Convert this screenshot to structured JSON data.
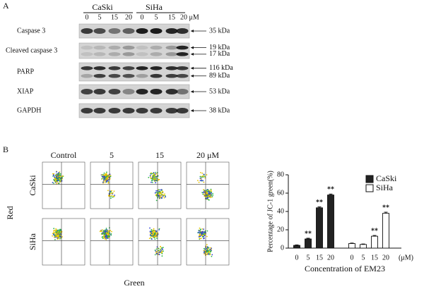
{
  "panel_labels": [
    "A",
    "B"
  ],
  "western_blot": {
    "cell_lines": [
      "CaSki",
      "SiHa"
    ],
    "concentrations": [
      "0",
      "5",
      "15",
      "20",
      "0",
      "5",
      "15",
      "20 μM"
    ],
    "rows": [
      {
        "label": "Caspase 3",
        "markers": [
          "35 kDa"
        ]
      },
      {
        "label": "Cleaved caspase 3",
        "markers": [
          "19 kDa",
          "17 kDa"
        ]
      },
      {
        "label": "PARP",
        "markers": [
          "116 kDa",
          "89 kDa"
        ]
      },
      {
        "label": "XIAP",
        "markers": [
          "53 kDa"
        ]
      },
      {
        "label": "GAPDH",
        "markers": [
          "38 kDa"
        ]
      }
    ]
  },
  "flow_cytometry": {
    "columns": [
      "Control",
      "5",
      "15",
      "20 μM"
    ],
    "rows": [
      "CaSki",
      "SiHa"
    ],
    "y_label": "Red",
    "x_label": "Green"
  },
  "chart_data": {
    "type": "bar",
    "y_label": "Percentage of JC-1 green(%)",
    "x_label": "Concentration of EM23",
    "x_unit": "(μM)",
    "categories": [
      "0",
      "5",
      "15",
      "20"
    ],
    "series": [
      {
        "name": "CaSki",
        "color": "#222222",
        "values": [
          3,
          10,
          44,
          58
        ],
        "errors": [
          0.5,
          0.8,
          1,
          1
        ],
        "significance": [
          null,
          "**",
          "**",
          "**"
        ]
      },
      {
        "name": "SiHa",
        "color": "#ffffff",
        "values": [
          5,
          4,
          13,
          38
        ],
        "errors": [
          0.5,
          0.5,
          0.8,
          1.2
        ],
        "significance": [
          null,
          null,
          "**",
          "**"
        ]
      }
    ],
    "ylim": [
      0,
      80
    ],
    "yticks": [
      0,
      20,
      40,
      60,
      80
    ],
    "legend": "upper right"
  }
}
